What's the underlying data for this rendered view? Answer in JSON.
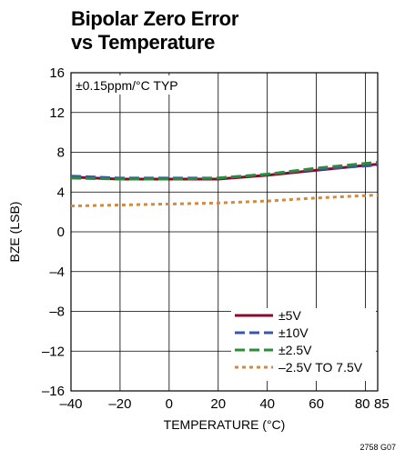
{
  "figure_id": "2758 G07",
  "chart_data": {
    "type": "line",
    "title_lines": [
      "Bipolar Zero Error",
      "vs Temperature"
    ],
    "xlabel": "TEMPERATURE (°C)",
    "ylabel": "BZE (LSB)",
    "xlim": [
      -40,
      85
    ],
    "ylim": [
      -16,
      16
    ],
    "xticks": [
      -40,
      -20,
      0,
      20,
      40,
      60,
      80,
      85
    ],
    "xtick_labels": [
      "–40",
      "–20",
      "0",
      "20",
      "40",
      "60",
      "80",
      "85"
    ],
    "yticks": [
      16,
      12,
      8,
      4,
      0,
      -4,
      -8,
      -12,
      -16
    ],
    "ytick_labels": [
      "16",
      "12",
      "8",
      "4",
      "0",
      "–4",
      "–8",
      "–12",
      "–16"
    ],
    "grid": true,
    "annotation": "±0.15ppm/°C TYP",
    "legend_position": "bottom-right",
    "series": [
      {
        "name": "±5V",
        "color": "#8b0a2b",
        "style": "solid",
        "x": [
          -40,
          -20,
          0,
          20,
          40,
          60,
          85
        ],
        "y": [
          5.5,
          5.3,
          5.3,
          5.3,
          5.7,
          6.2,
          6.8
        ]
      },
      {
        "name": "±10V",
        "color": "#3a56a8",
        "style": "dashed",
        "x": [
          -40,
          -20,
          0,
          20,
          40,
          60,
          85
        ],
        "y": [
          5.6,
          5.4,
          5.4,
          5.4,
          5.8,
          6.3,
          6.7
        ]
      },
      {
        "name": "±2.5V",
        "color": "#2e8b3a",
        "style": "dashed",
        "x": [
          -40,
          -20,
          0,
          20,
          40,
          60,
          85
        ],
        "y": [
          5.4,
          5.3,
          5.3,
          5.4,
          5.8,
          6.4,
          7.0
        ]
      },
      {
        "name": "–2.5V TO 7.5V",
        "color": "#d48a3c",
        "style": "dotted",
        "x": [
          -40,
          -20,
          0,
          20,
          40,
          60,
          85
        ],
        "y": [
          2.6,
          2.7,
          2.8,
          2.9,
          3.1,
          3.4,
          3.7
        ]
      }
    ]
  }
}
